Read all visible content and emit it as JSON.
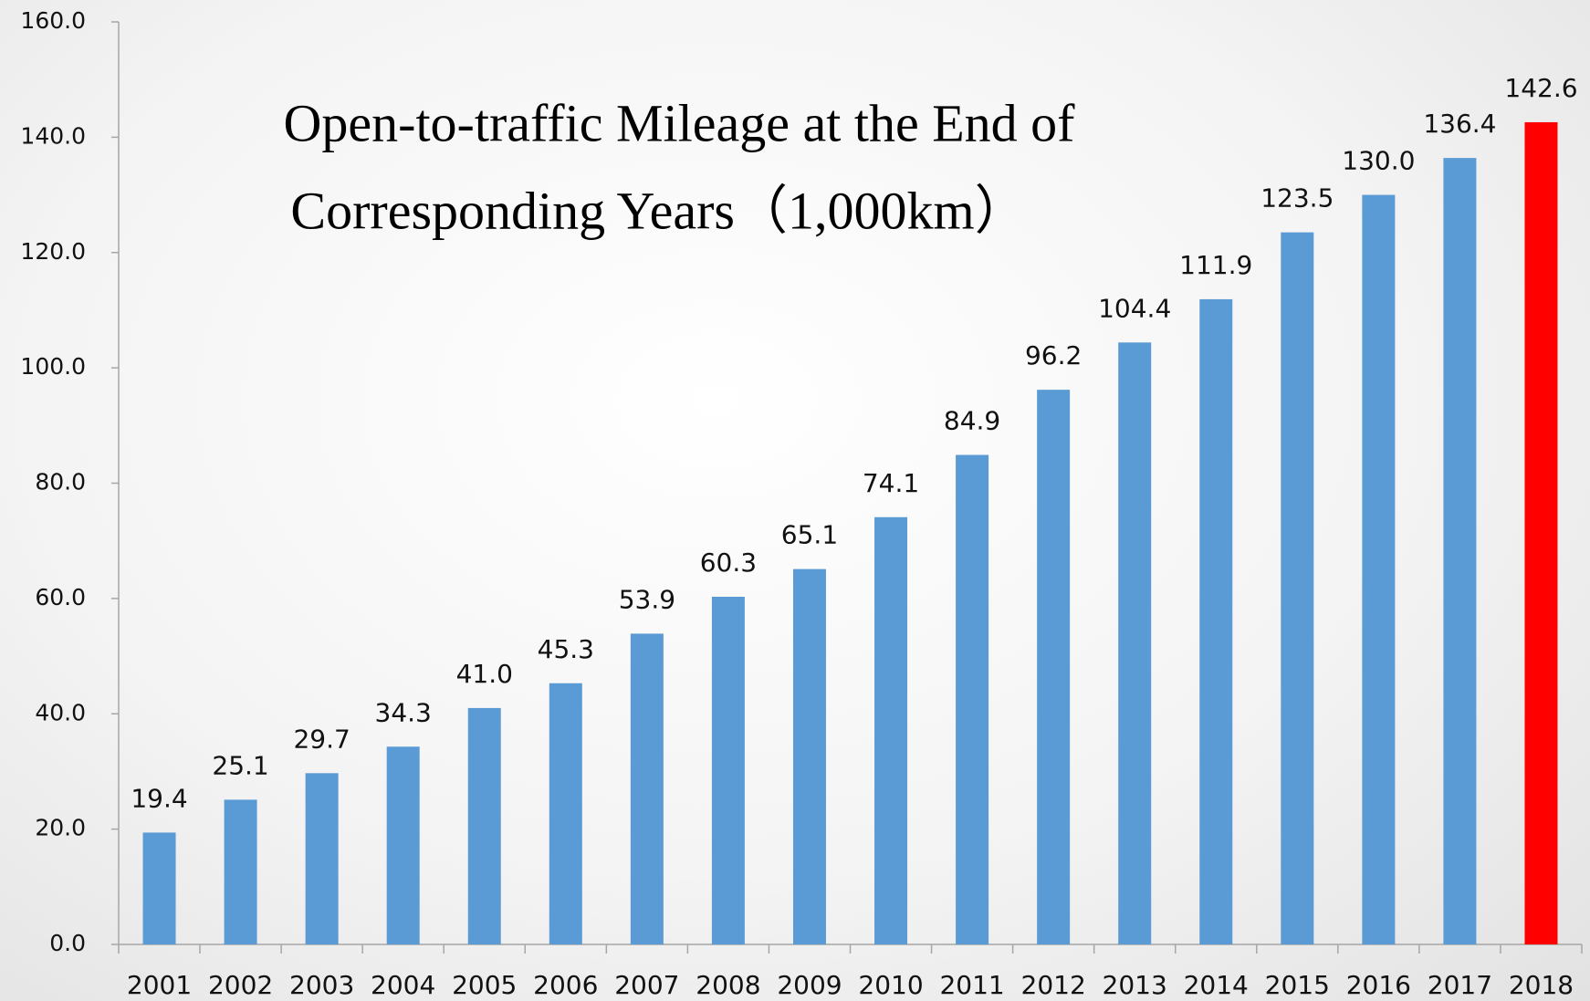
{
  "chart_data": {
    "type": "bar",
    "title": [
      "Open-to-traffic Mileage at the End of",
      "Corresponding Years（1,000km）"
    ],
    "categories": [
      "2001",
      "2002",
      "2003",
      "2004",
      "2005",
      "2006",
      "2007",
      "2008",
      "2009",
      "2010",
      "2011",
      "2012",
      "2013",
      "2014",
      "2015",
      "2016",
      "2017",
      "2018"
    ],
    "values": [
      19.4,
      25.1,
      29.7,
      34.3,
      41.0,
      45.3,
      53.9,
      60.3,
      65.1,
      74.1,
      84.9,
      96.2,
      104.4,
      111.9,
      123.5,
      130.0,
      136.4,
      142.6
    ],
    "value_labels": [
      "19.4",
      "25.1",
      "29.7",
      "34.3",
      "41.0",
      "45.3",
      "53.9",
      "60.3",
      "65.1",
      "74.1",
      "84.9",
      "96.2",
      "104.4",
      "111.9",
      "123.5",
      "130.0",
      "136.4",
      "142.6"
    ],
    "colors": [
      "#5b9bd5",
      "#5b9bd5",
      "#5b9bd5",
      "#5b9bd5",
      "#5b9bd5",
      "#5b9bd5",
      "#5b9bd5",
      "#5b9bd5",
      "#5b9bd5",
      "#5b9bd5",
      "#5b9bd5",
      "#5b9bd5",
      "#5b9bd5",
      "#5b9bd5",
      "#5b9bd5",
      "#5b9bd5",
      "#5b9bd5",
      "#ff0000"
    ],
    "ylim": [
      0,
      160
    ],
    "yticks": [
      {
        "value": 0,
        "label": "0.0"
      },
      {
        "value": 20,
        "label": "20.0"
      },
      {
        "value": 40,
        "label": "40.0"
      },
      {
        "value": 60,
        "label": "60.0"
      },
      {
        "value": 80,
        "label": "80.0"
      },
      {
        "value": 100,
        "label": "100.0"
      },
      {
        "value": 120,
        "label": "120.0"
      },
      {
        "value": 140,
        "label": "140.0"
      },
      {
        "value": 160,
        "label": "160.0"
      }
    ],
    "grid": false
  }
}
